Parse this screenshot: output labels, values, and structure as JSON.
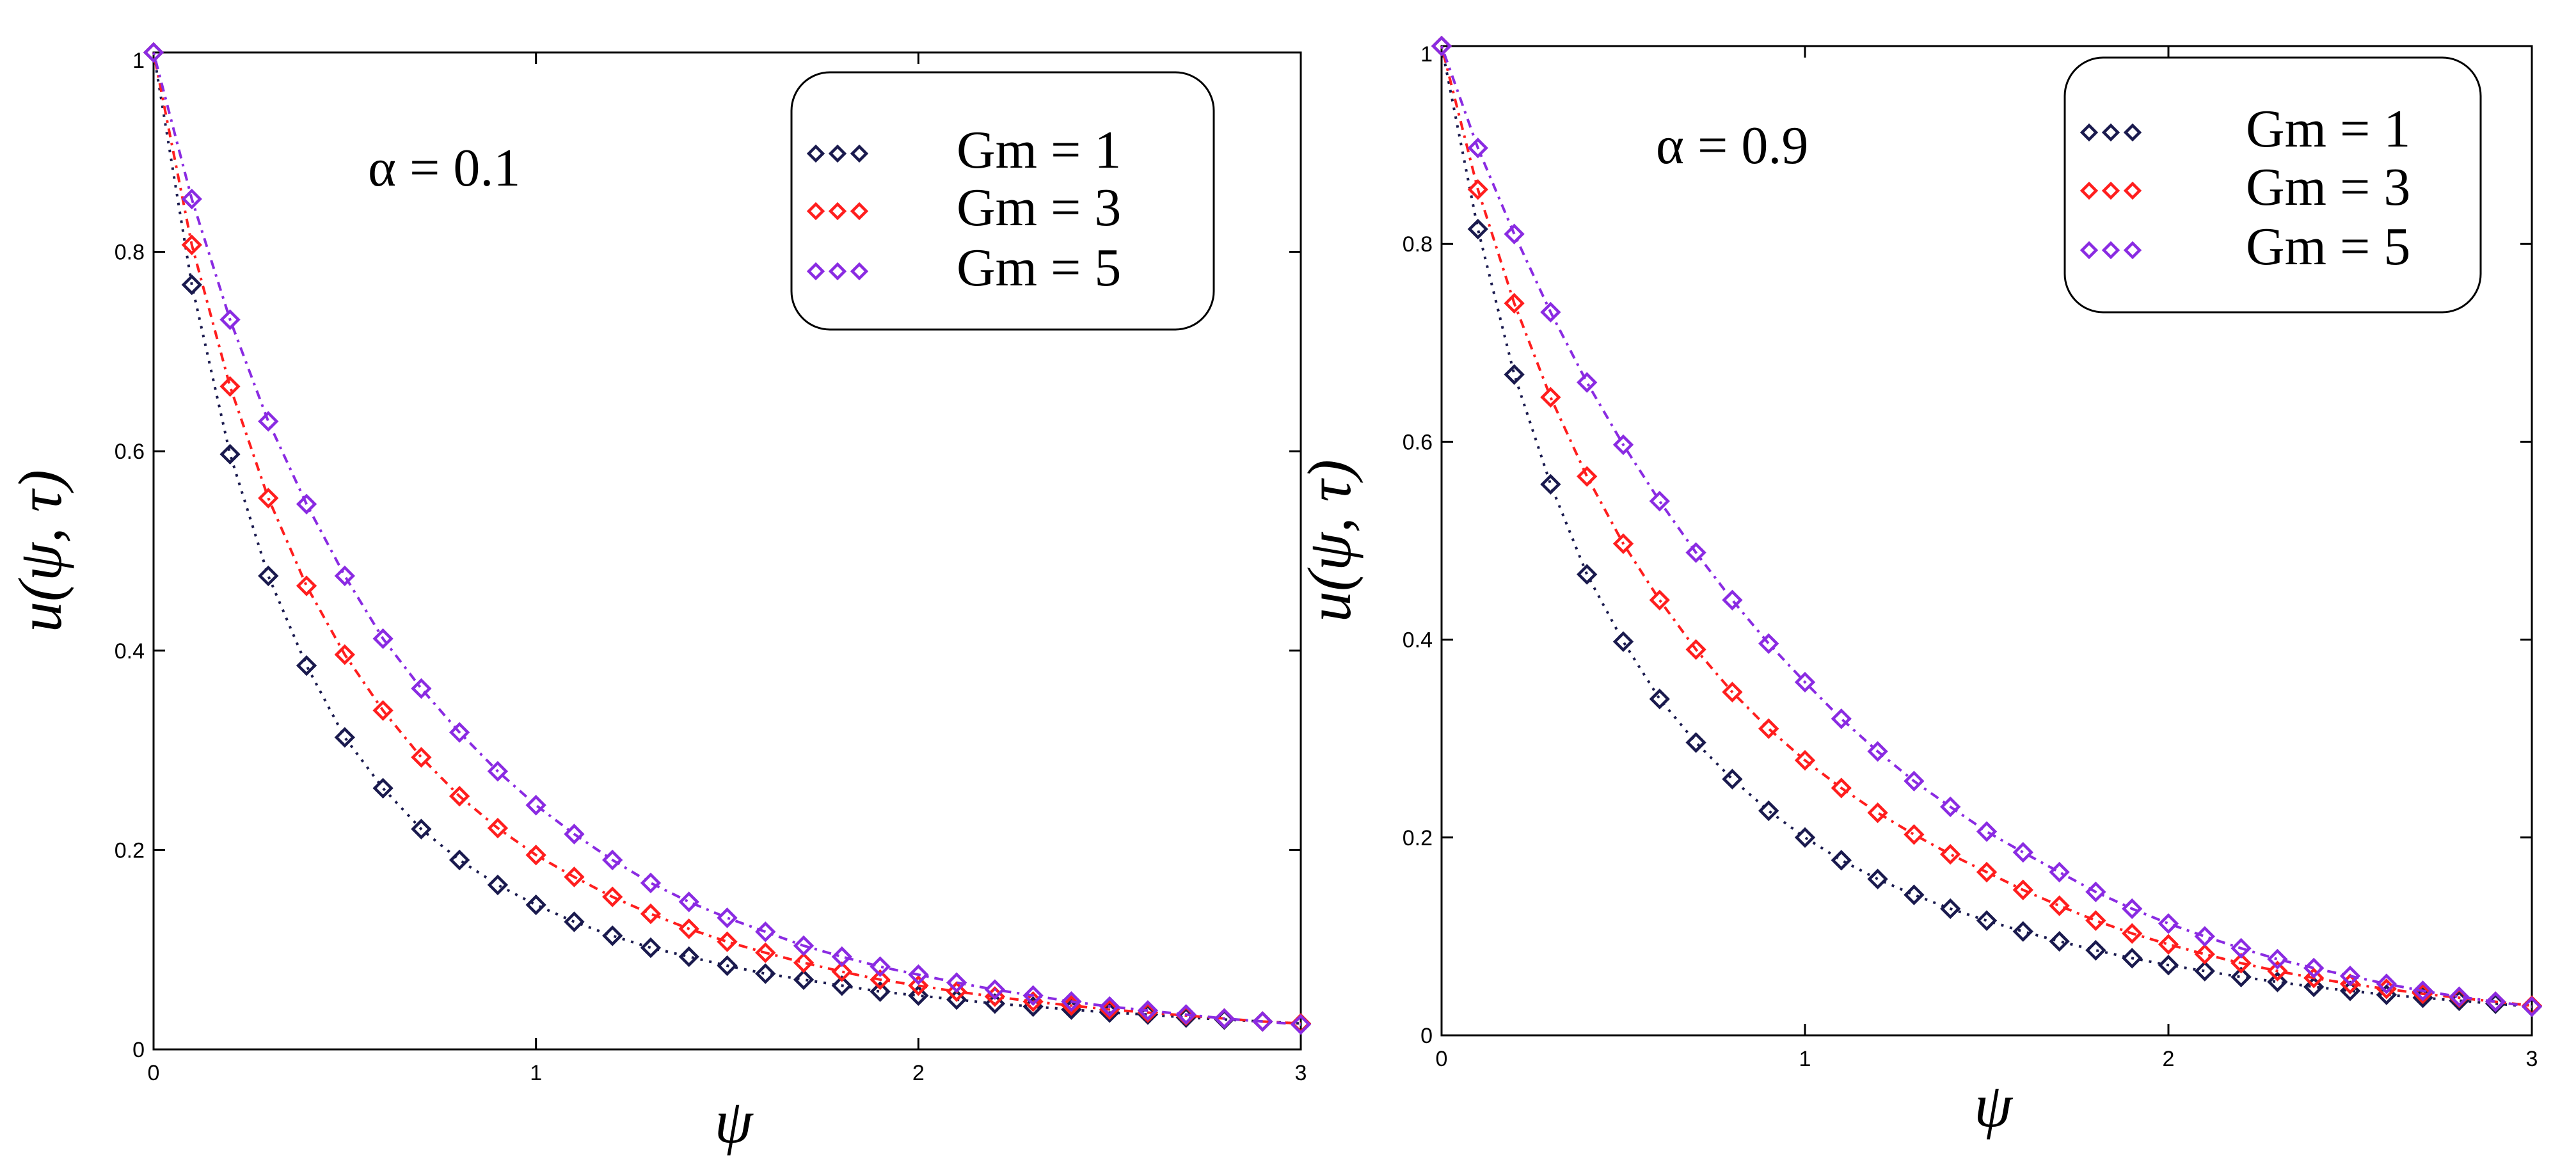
{
  "chart_data": [
    {
      "type": "line",
      "annotation": "α = 0.1",
      "xlabel": "ψ",
      "ylabel": "u(ψ, τ)",
      "xlim": [
        0,
        3
      ],
      "ylim": [
        0,
        1
      ],
      "xticks": [
        "0",
        "1",
        "2",
        "3"
      ],
      "yticks": [
        "0",
        "0.2",
        "0.4",
        "0.6",
        "0.8",
        "1"
      ],
      "legend_position": "top-right",
      "grid": false,
      "x": [
        0,
        0.1,
        0.2,
        0.3,
        0.4,
        0.5,
        0.6,
        0.7,
        0.8,
        0.9,
        1.0,
        1.1,
        1.2,
        1.3,
        1.4,
        1.5,
        1.6,
        1.7,
        1.8,
        1.9,
        2.0,
        2.1,
        2.2,
        2.3,
        2.4,
        2.5,
        2.6,
        2.7,
        2.8,
        2.9,
        3.0
      ],
      "series": [
        {
          "name": "Gm = 1",
          "color": "#1a1a4e",
          "values": [
            1,
            0.767,
            0.597,
            0.475,
            0.385,
            0.313,
            0.262,
            0.221,
            0.19,
            0.165,
            0.145,
            0.128,
            0.114,
            0.102,
            0.093,
            0.084,
            0.076,
            0.07,
            0.064,
            0.058,
            0.054,
            0.05,
            0.046,
            0.043,
            0.04,
            0.037,
            0.035,
            0.032,
            0.03,
            0.028,
            0.026
          ]
        },
        {
          "name": "Gm = 3",
          "color": "#ff1e1e",
          "values": [
            1,
            0.807,
            0.665,
            0.553,
            0.465,
            0.396,
            0.34,
            0.293,
            0.254,
            0.222,
            0.195,
            0.173,
            0.153,
            0.136,
            0.121,
            0.108,
            0.097,
            0.087,
            0.078,
            0.07,
            0.064,
            0.058,
            0.053,
            0.048,
            0.044,
            0.04,
            0.037,
            0.034,
            0.031,
            0.028,
            0.026
          ]
        },
        {
          "name": "Gm = 5",
          "color": "#8a2be2",
          "values": [
            1,
            0.853,
            0.732,
            0.63,
            0.547,
            0.475,
            0.412,
            0.362,
            0.318,
            0.279,
            0.245,
            0.216,
            0.19,
            0.167,
            0.148,
            0.132,
            0.118,
            0.104,
            0.093,
            0.083,
            0.075,
            0.067,
            0.06,
            0.054,
            0.048,
            0.043,
            0.039,
            0.035,
            0.031,
            0.028,
            0.025
          ]
        }
      ]
    },
    {
      "type": "line",
      "annotation": "α = 0.9",
      "xlabel": "ψ",
      "ylabel": "u(ψ, τ)",
      "xlim": [
        0,
        3
      ],
      "ylim": [
        0,
        1
      ],
      "xticks": [
        "0",
        "1",
        "2",
        "3"
      ],
      "yticks": [
        "0",
        "0.2",
        "0.4",
        "0.6",
        "0.8",
        "1"
      ],
      "legend_position": "top-right",
      "grid": false,
      "x": [
        0,
        0.1,
        0.2,
        0.3,
        0.4,
        0.5,
        0.6,
        0.7,
        0.8,
        0.9,
        1.0,
        1.1,
        1.2,
        1.3,
        1.4,
        1.5,
        1.6,
        1.7,
        1.8,
        1.9,
        2.0,
        2.1,
        2.2,
        2.3,
        2.4,
        2.5,
        2.6,
        2.7,
        2.8,
        2.9,
        3.0
      ],
      "series": [
        {
          "name": "Gm = 1",
          "color": "#1a1a4e",
          "values": [
            1,
            0.815,
            0.668,
            0.557,
            0.466,
            0.398,
            0.34,
            0.296,
            0.259,
            0.227,
            0.2,
            0.177,
            0.158,
            0.142,
            0.128,
            0.116,
            0.105,
            0.095,
            0.086,
            0.078,
            0.071,
            0.065,
            0.059,
            0.054,
            0.049,
            0.045,
            0.041,
            0.038,
            0.035,
            0.032,
            0.029
          ]
        },
        {
          "name": "Gm = 3",
          "color": "#ff1e1e",
          "values": [
            1,
            0.855,
            0.74,
            0.645,
            0.565,
            0.497,
            0.44,
            0.39,
            0.347,
            0.31,
            0.278,
            0.25,
            0.225,
            0.203,
            0.183,
            0.165,
            0.147,
            0.131,
            0.116,
            0.103,
            0.092,
            0.082,
            0.073,
            0.065,
            0.058,
            0.052,
            0.047,
            0.042,
            0.038,
            0.034,
            0.03
          ]
        },
        {
          "name": "Gm = 5",
          "color": "#8a2be2",
          "values": [
            1,
            0.897,
            0.81,
            0.731,
            0.66,
            0.597,
            0.54,
            0.488,
            0.44,
            0.396,
            0.357,
            0.32,
            0.287,
            0.257,
            0.231,
            0.206,
            0.185,
            0.165,
            0.145,
            0.128,
            0.113,
            0.1,
            0.088,
            0.077,
            0.068,
            0.06,
            0.052,
            0.045,
            0.039,
            0.034,
            0.029
          ]
        }
      ]
    }
  ]
}
